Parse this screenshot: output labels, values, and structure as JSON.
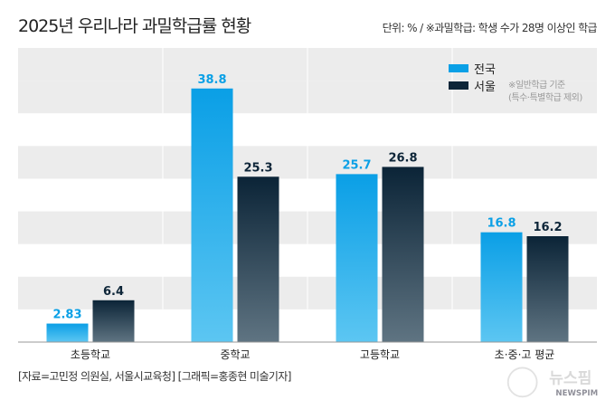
{
  "title": "2025년 우리나라 과밀학급률 현황",
  "unit_note": "단위: % / ※과밀학급: 학생 수가 28명 이상인 학급",
  "legend_note_1": "※일반학급 기준",
  "legend_note_2": "(특수·특별학급 제외)",
  "source": "[자료=고민정 의원실, 서울시교육청] [그래픽=홍종현 미술기자]",
  "logo_text": "뉴스핌 NEWSPIM",
  "chart_data": {
    "type": "bar",
    "categories": [
      "초등학교",
      "중학교",
      "고등학교",
      "초·중·고 평균"
    ],
    "series": [
      {
        "name": "전국",
        "values": [
          2.83,
          38.8,
          25.7,
          16.8
        ],
        "labels": [
          "2.83",
          "38.8",
          "25.7",
          "16.8"
        ],
        "color": "#0aa0e6"
      },
      {
        "name": "서울",
        "values": [
          6.4,
          25.3,
          26.8,
          16.2
        ],
        "labels": [
          "6.4",
          "25.3",
          "26.8",
          "16.2"
        ],
        "color": "#0d2538"
      }
    ],
    "ylim": [
      0,
      45
    ],
    "grid": "alternating bands",
    "legend": "top-right"
  }
}
